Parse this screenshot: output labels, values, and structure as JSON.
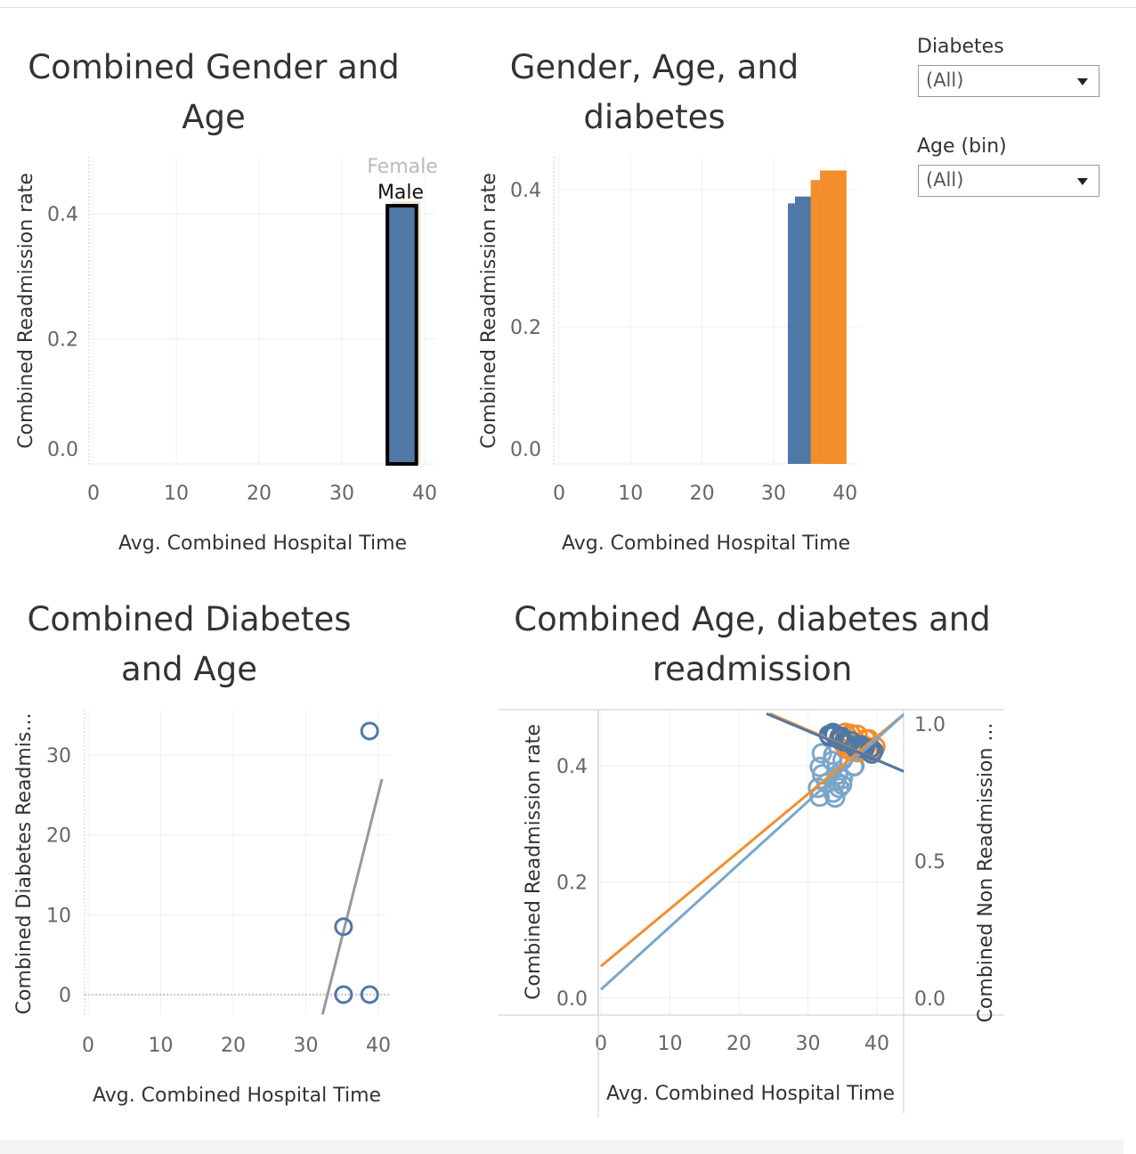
{
  "filters": [
    {
      "label": "Diabetes",
      "value": "(All)"
    },
    {
      "label": "Age (bin)",
      "value": "(All)"
    }
  ],
  "colors": {
    "blue": "#4e79a7",
    "orange": "#f28e2b",
    "lightblue": "#7aa6c9",
    "grid": "#f0f0f0",
    "trend": "#999999"
  },
  "chart_data": [
    {
      "type": "bar",
      "title": "Combined Gender and Age",
      "xlabel": "Avg. Combined Hospital Time",
      "ylabel": "Combined Readmission rate",
      "xticks": [
        0,
        10,
        20,
        30,
        40
      ],
      "yticks": [
        0.0,
        0.2,
        0.4
      ],
      "ytick_labels": [
        "0.0",
        "0.2",
        "0.4"
      ],
      "bars": [
        {
          "name": "Female",
          "x0": 36,
          "x1": 39.5,
          "value": 0.42,
          "color": "#f5e3cf"
        },
        {
          "name": "Male",
          "x0": 35.5,
          "x1": 39,
          "value": 0.413,
          "color": "#4e79a7",
          "selected": true
        }
      ],
      "labels": [
        "Female",
        "Male"
      ]
    },
    {
      "type": "bar",
      "title": "Gender, Age, and diabetes",
      "xlabel": "Avg. Combined Hospital Time",
      "ylabel": "Combined Readmission rate",
      "xticks": [
        0,
        10,
        20,
        30,
        40
      ],
      "yticks": [
        0.0,
        0.2,
        0.4
      ],
      "ytick_labels": [
        "0.0",
        "0.2",
        "0.4"
      ],
      "bars": [
        {
          "x0": 32,
          "x1": 33,
          "value": 0.38,
          "color": "#4e79a7"
        },
        {
          "x0": 33,
          "x1": 36.7,
          "value": 0.39,
          "color": "#4e79a7"
        },
        {
          "x0": 35.2,
          "x1": 36.5,
          "value": 0.414,
          "color": "#f28e2b"
        },
        {
          "x0": 36.5,
          "x1": 40.2,
          "value": 0.428,
          "color": "#f28e2b"
        }
      ]
    },
    {
      "type": "scatter",
      "title": "Combined Diabetes and Age",
      "xlabel": "Avg. Combined Hospital Time",
      "ylabel": "Combined Diabetes Readmis...",
      "xticks": [
        0,
        10,
        20,
        30,
        40
      ],
      "yticks": [
        0,
        10,
        20,
        30
      ],
      "ytick_labels": [
        "0",
        "10",
        "20",
        "30"
      ],
      "points": [
        [
          38.8,
          33
        ],
        [
          35.2,
          8.5
        ],
        [
          35.2,
          0
        ],
        [
          38.8,
          0
        ]
      ],
      "trend": [
        [
          32.3,
          -2.5
        ],
        [
          40.5,
          27
        ]
      ]
    },
    {
      "type": "scatter",
      "title": "Combined Age, diabetes and readmission",
      "xlabel": "Avg. Combined Hospital Time",
      "ylabel": "Combined Readmission rate",
      "ylabel_right": "Combined Non Readmission ...",
      "xticks": [
        0,
        10,
        20,
        30,
        40
      ],
      "yticks": [
        0.0,
        0.2,
        0.4
      ],
      "ytick_labels": [
        "0.0",
        "0.2",
        "0.4"
      ],
      "yticks_right": [
        0.0,
        0.5,
        1.0
      ],
      "ytick_right_labels": [
        "0.0",
        "0.5",
        "1.0"
      ],
      "trends": [
        {
          "color": "#f28e2b",
          "from": [
            0,
            0.055
          ],
          "to": [
            44,
            0.49
          ]
        },
        {
          "color": "#7aa6c9",
          "from": [
            0,
            0.015
          ],
          "to": [
            44,
            0.49
          ]
        },
        {
          "color": "#f28e2b",
          "from": [
            24.5,
            0.49
          ],
          "to": [
            44,
            0.39
          ]
        },
        {
          "color": "#4e79a7",
          "from": [
            24,
            0.49
          ],
          "to": [
            44,
            0.39
          ]
        }
      ]
    }
  ]
}
